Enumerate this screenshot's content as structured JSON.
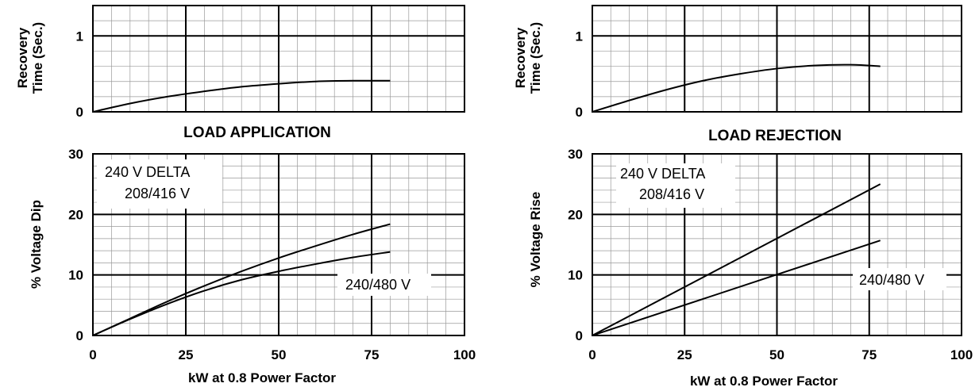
{
  "colors": {
    "line": "#000000",
    "minor_grid": "#9a9a9a",
    "major_grid": "#000000",
    "background": "#ffffff"
  },
  "chart_data": [
    {
      "id": "app_recovery",
      "type": "line",
      "title": "",
      "xlabel": "",
      "ylabel": "Recovery Time (Sec.)",
      "ylabel_lines": [
        "Recovery",
        "Time (Sec.)"
      ],
      "xlim": [
        0,
        100
      ],
      "ylim": [
        0,
        1.4
      ],
      "xticks": [],
      "yticks": [
        0,
        1
      ],
      "ytick_labels": [
        "0",
        "1"
      ],
      "grid": true,
      "series": [
        {
          "x": [
            0,
            10,
            20,
            30,
            40,
            50,
            60,
            70,
            80
          ],
          "y": [
            0,
            0.11,
            0.2,
            0.27,
            0.33,
            0.37,
            0.4,
            0.41,
            0.41
          ]
        }
      ]
    },
    {
      "id": "app_voltage",
      "type": "line",
      "title": "LOAD APPLICATION",
      "xlabel": "kW at 0.8 Power Factor",
      "ylabel": "% Voltage Dip",
      "xlim": [
        0,
        100
      ],
      "ylim": [
        0,
        30
      ],
      "xticks": [
        0,
        25,
        50,
        75,
        100
      ],
      "xtick_labels": [
        "0",
        "25",
        "50",
        "75",
        "100"
      ],
      "yticks": [
        0,
        10,
        20,
        30
      ],
      "ytick_labels": [
        "0",
        "10",
        "20",
        "30"
      ],
      "grid": true,
      "annotations": [
        "240 V DELTA",
        "208/416 V",
        "240/480 V"
      ],
      "series": [
        {
          "label": "240 V DELTA 208/416 V",
          "x": [
            0,
            10,
            20,
            30,
            40,
            50,
            60,
            70,
            80
          ],
          "y": [
            0,
            2.8,
            5.6,
            8.2,
            10.6,
            12.8,
            14.8,
            16.7,
            18.4
          ]
        },
        {
          "label": "240/480 V",
          "x": [
            0,
            10,
            20,
            30,
            40,
            50,
            60,
            70,
            80
          ],
          "y": [
            0,
            2.7,
            5.2,
            7.4,
            9.2,
            10.6,
            11.8,
            12.9,
            13.8
          ]
        }
      ]
    },
    {
      "id": "rej_recovery",
      "type": "line",
      "title": "",
      "xlabel": "",
      "ylabel": "Recovery Time (Sec.)",
      "ylabel_lines": [
        "Recovery",
        "Time (Sec.)"
      ],
      "xlim": [
        0,
        100
      ],
      "ylim": [
        0,
        1.4
      ],
      "xticks": [],
      "yticks": [
        0,
        1
      ],
      "ytick_labels": [
        "0",
        "1"
      ],
      "grid": true,
      "series": [
        {
          "x": [
            0,
            10,
            20,
            30,
            40,
            50,
            60,
            70,
            78
          ],
          "y": [
            0,
            0.15,
            0.29,
            0.41,
            0.5,
            0.57,
            0.61,
            0.62,
            0.6
          ]
        }
      ]
    },
    {
      "id": "rej_voltage",
      "type": "line",
      "title": "LOAD REJECTION",
      "xlabel": "kW at 0.8 Power Factor",
      "ylabel": "% Voltage Rise",
      "xlim": [
        0,
        100
      ],
      "ylim": [
        0,
        30
      ],
      "xticks": [
        0,
        25,
        50,
        75,
        100
      ],
      "xtick_labels": [
        "0",
        "25",
        "50",
        "75",
        "100"
      ],
      "yticks": [
        0,
        10,
        20,
        30
      ],
      "ytick_labels": [
        "0",
        "10",
        "20",
        "30"
      ],
      "grid": true,
      "annotations": [
        "240 V DELTA",
        "208/416 V",
        "240/480 V"
      ],
      "series": [
        {
          "label": "240 V DELTA 208/416 V",
          "x": [
            0,
            78
          ],
          "y": [
            0,
            25
          ]
        },
        {
          "label": "240/480 V",
          "x": [
            0,
            78
          ],
          "y": [
            0,
            15.7
          ]
        }
      ]
    }
  ]
}
